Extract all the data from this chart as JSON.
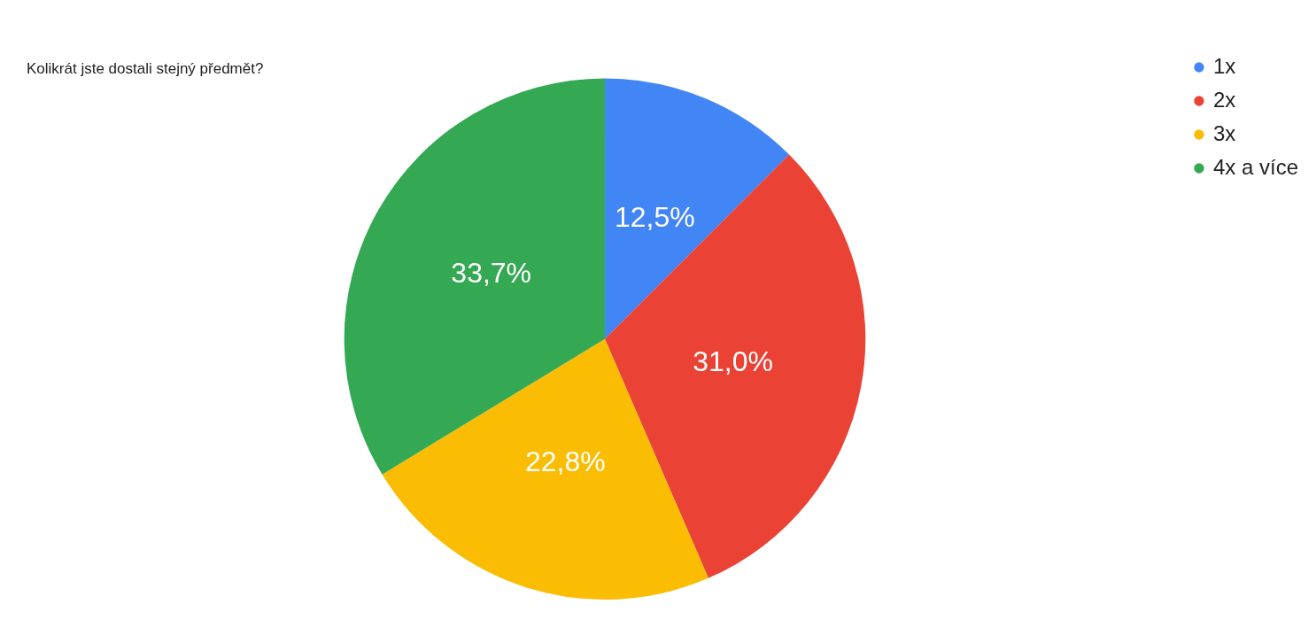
{
  "chart_data": {
    "type": "pie",
    "title": "Kolikrát jste dostali stejný předmět?",
    "categories": [
      "1x",
      "2x",
      "3x",
      "4x a více"
    ],
    "values": [
      12.5,
      31.0,
      22.8,
      33.7
    ],
    "value_labels": [
      "12,5%",
      "31,0%",
      "22,8%",
      "33,7%"
    ],
    "colors": [
      "#4285f4",
      "#ea4335",
      "#fbbc04",
      "#34a853"
    ],
    "legend": "top right"
  }
}
